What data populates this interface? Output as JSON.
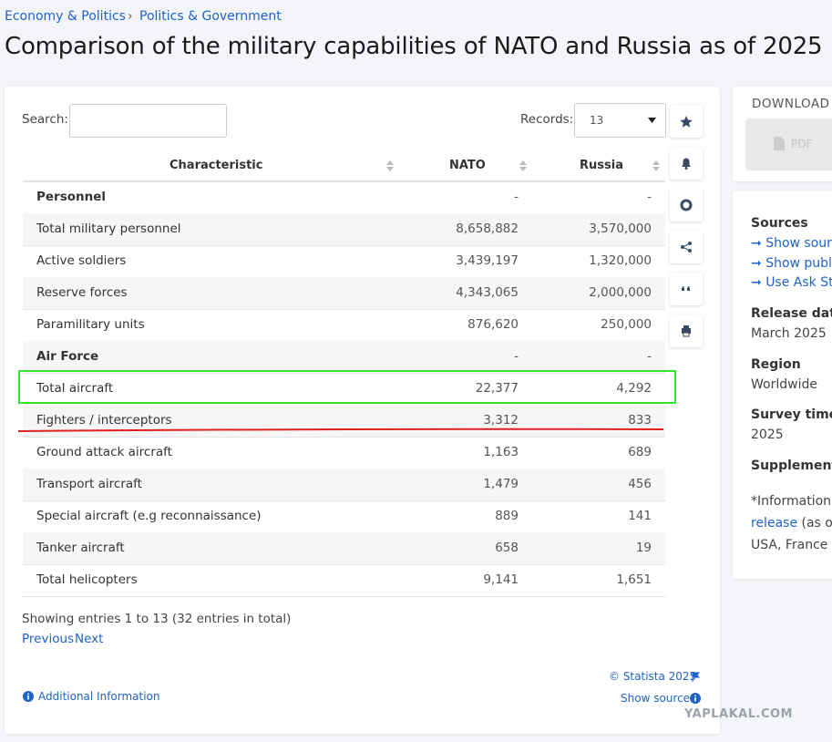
{
  "breadcrumb": [
    "Economy & Politics",
    "Politics & Government"
  ],
  "title": "Comparison of the military capabilities of NATO and Russia as of 2025",
  "search_label": "Search:",
  "records_label": "Records:",
  "records_value": "13",
  "table": {
    "header": [
      "Characteristic",
      "NATO",
      "Russia"
    ],
    "rows": [
      [
        "Personnel",
        "-",
        "-"
      ],
      [
        "Total military personnel",
        "8,658,882",
        "3,570,000"
      ],
      [
        "Active soldiers",
        "3,439,197",
        "1,320,000"
      ],
      [
        "Reserve forces",
        "4,343,065",
        "2,000,000"
      ],
      [
        "Paramilitary units",
        "876,620",
        "250,000"
      ],
      [
        "Air Force",
        "-",
        "-"
      ],
      [
        "Total aircraft",
        "22,377",
        "4,292"
      ],
      [
        "Fighters / interceptors",
        "3,312",
        "833"
      ],
      [
        "Ground attack aircraft",
        "1,163",
        "689"
      ],
      [
        "Transport aircraft",
        "1,479",
        "456"
      ],
      [
        "Special aircraft (e.g reconnaissance)",
        "889",
        "141"
      ],
      [
        "Tanker aircraft",
        "658",
        "19"
      ],
      [
        "Total helicopters",
        "9,141",
        "1,651"
      ]
    ],
    "section_rows": [
      0,
      5
    ]
  },
  "entries_info": "Showing entries 1 to 13 (32 entries in total)",
  "pagination": [
    "Previous",
    "Next"
  ],
  "copyright": "© Statista 2025",
  "show_source": "Show source",
  "additional_information": "Additional Information",
  "watermark": "YAPLAKAL.COM",
  "download": {
    "title": "DOWNLOAD",
    "pdf": "PDF"
  },
  "sidebar": {
    "sources_title": "Sources",
    "source_links": [
      "Show sourc",
      "Show publi",
      "Use Ask Sta"
    ],
    "release_date_title": "Release date",
    "release_date": "March 2025",
    "region_title": "Region",
    "region": "Worldwide",
    "survey_time_title": "Survey time",
    "survey_time": "2025",
    "supplement_title": "Supplement",
    "supplement_lines": [
      "*Information",
      "release",
      " (as o",
      "USA, France ,"
    ]
  }
}
